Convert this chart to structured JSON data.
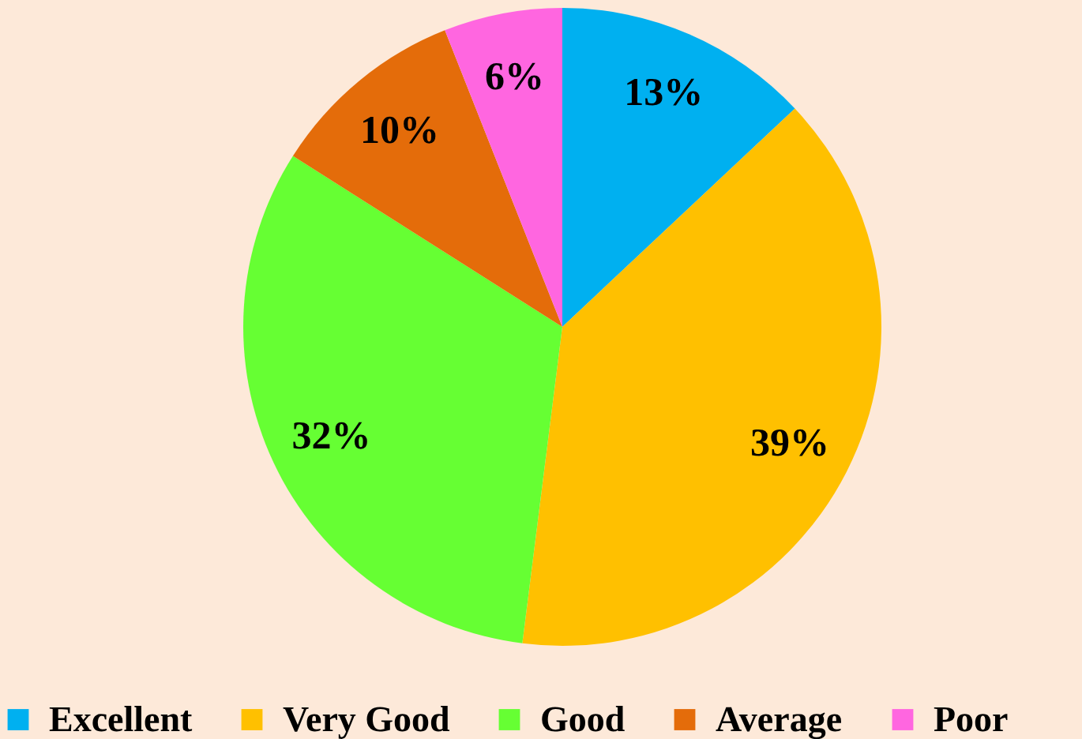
{
  "chart_data": {
    "type": "pie",
    "categories": [
      "Excellent",
      "Very Good",
      "Good",
      "Average",
      "Poor"
    ],
    "values": [
      13,
      39,
      32,
      10,
      6
    ],
    "colors": [
      "#00b0f0",
      "#ffc000",
      "#66ff33",
      "#e46c0a",
      "#ff66e0"
    ],
    "value_labels": [
      "13%",
      "39%",
      "32%",
      "10%",
      "6%"
    ],
    "legend": "bottom"
  }
}
